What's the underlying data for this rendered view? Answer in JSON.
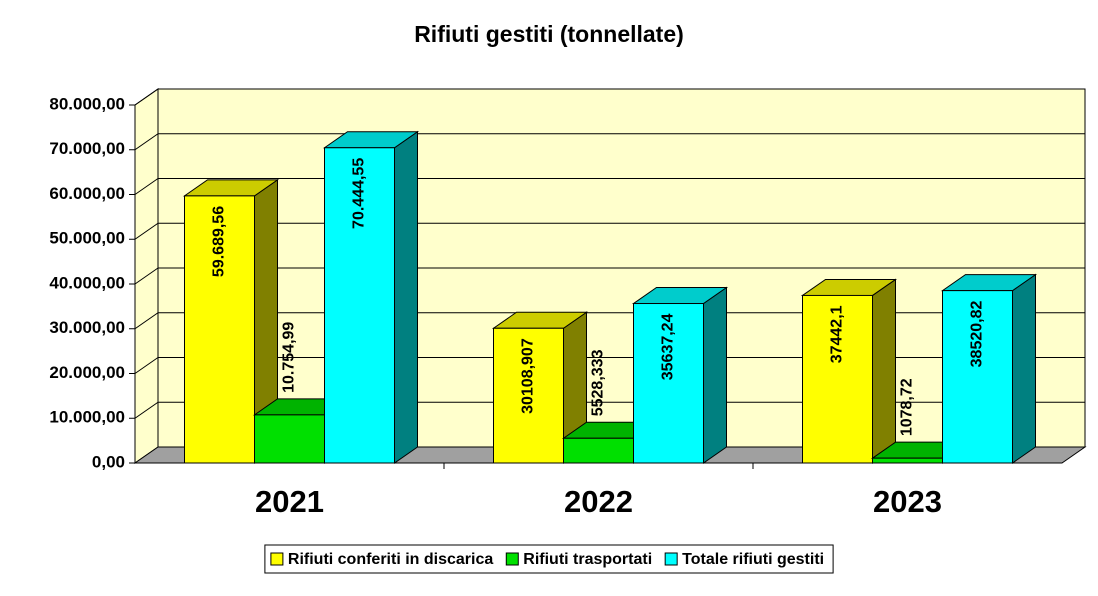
{
  "chart_data": {
    "type": "bar3d",
    "title": "Rifiuti gestiti (tonnellate)",
    "categories": [
      "2021",
      "2022",
      "2023"
    ],
    "series": [
      {
        "name": "Rifiuti conferiti in discarica",
        "color": "#ffff00",
        "values": [
          59689.56,
          30108.907,
          37442.1
        ],
        "value_labels": [
          "59.689,56",
          "30108,907",
          "37442,1"
        ]
      },
      {
        "name": "Rifiuti trasportati",
        "color": "#00e000",
        "values": [
          10754.99,
          5528.333,
          1078.72
        ],
        "value_labels": [
          "10.754,99",
          "5528,333",
          "1078,72"
        ]
      },
      {
        "name": "Totale rifiuti gestiti",
        "color": "#00ffff",
        "values": [
          70444.55,
          35637.24,
          38520.82
        ],
        "value_labels": [
          "70.444,55",
          "35637,24",
          "38520,82"
        ]
      }
    ],
    "ylim": [
      0,
      80000
    ],
    "yticks": [
      {
        "value": 0,
        "label": "0,00"
      },
      {
        "value": 10000,
        "label": "10.000,00"
      },
      {
        "value": 20000,
        "label": "20.000,00"
      },
      {
        "value": 30000,
        "label": "30.000,00"
      },
      {
        "value": 40000,
        "label": "40.000,00"
      },
      {
        "value": 50000,
        "label": "50.000,00"
      },
      {
        "value": 60000,
        "label": "60.000,00"
      },
      {
        "value": 70000,
        "label": "70.000,00"
      },
      {
        "value": 80000,
        "label": "80.000,00"
      }
    ],
    "grid": true,
    "legend": "bottom"
  }
}
